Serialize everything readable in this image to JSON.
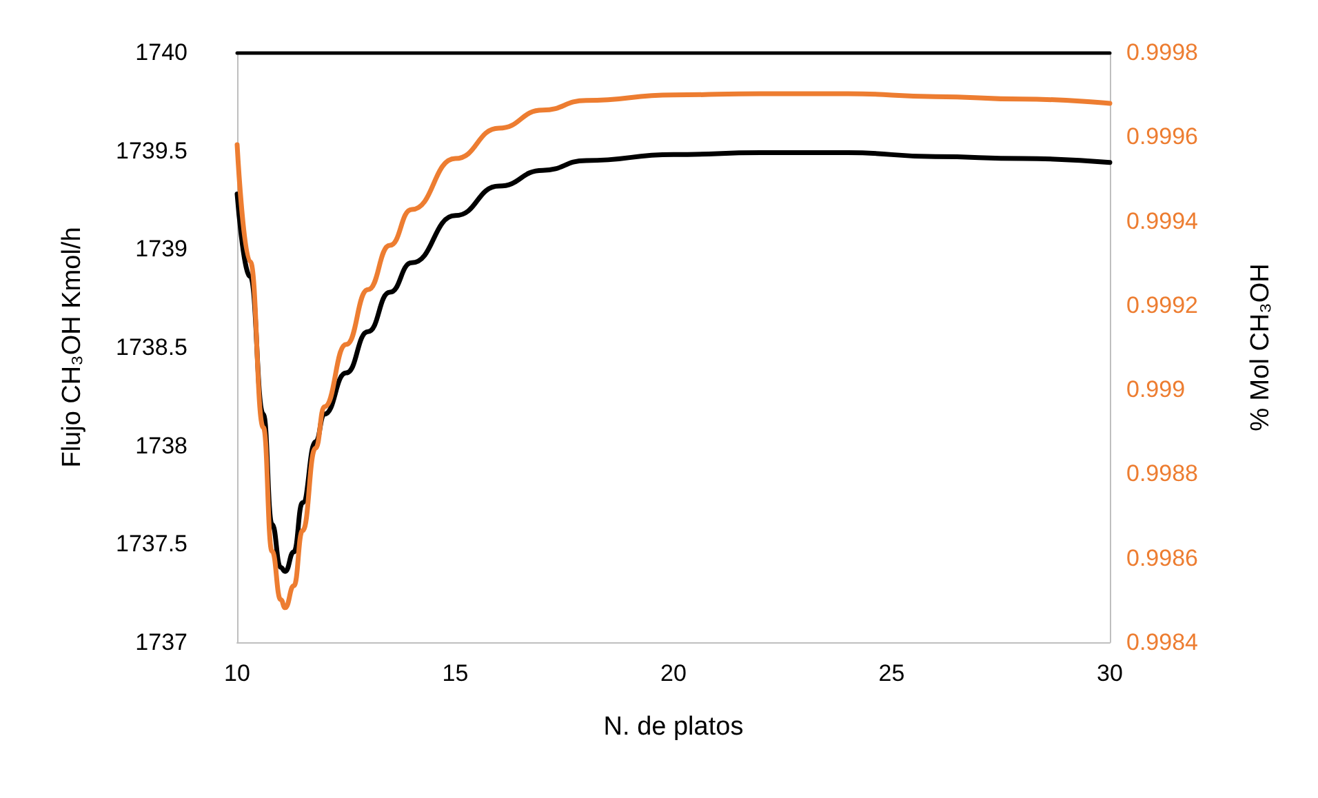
{
  "chart_data": {
    "type": "line",
    "xlabel": "N. de platos",
    "ylabel": "Flujo CH₃OH Kmol/h",
    "y2label": "% Mol CH₃OH",
    "xlim": [
      10,
      30
    ],
    "xticks": [
      10,
      15,
      20,
      25,
      30
    ],
    "ylim": [
      1737,
      1740
    ],
    "yticks": [
      1737,
      1737.5,
      1738,
      1738.5,
      1739,
      1739.5,
      1740
    ],
    "y2lim": [
      0.9984,
      0.9998
    ],
    "y2ticks": [
      0.9984,
      0.9986,
      0.9988,
      0.999,
      0.9992,
      0.9994,
      0.9996,
      0.9998
    ],
    "grid": false,
    "legend": false,
    "marker": "none",
    "line_style": "solid",
    "x": [
      10,
      10.3,
      10.6,
      10.8,
      11.0,
      11.1,
      11.3,
      11.5,
      11.8,
      12.0,
      12.5,
      13,
      13.5,
      14,
      15,
      16,
      17,
      18,
      20,
      22,
      24,
      26,
      28,
      30
    ],
    "series": [
      {
        "color": "#000000",
        "values": [
          1739.28,
          1738.86,
          1738.16,
          1737.6,
          1737.38,
          1737.36,
          1737.46,
          1737.71,
          1738.02,
          1738.16,
          1738.37,
          1738.58,
          1738.78,
          1738.93,
          1739.17,
          1739.32,
          1739.4,
          1739.45,
          1739.48,
          1739.49,
          1739.49,
          1739.47,
          1739.46,
          1739.44
        ]
      },
      {
        "color": "#ed7d31",
        "axis": "y2",
        "values": [
          0.999581,
          0.999303,
          0.99891,
          0.998616,
          0.998501,
          0.998482,
          0.998534,
          0.998665,
          0.998861,
          0.998959,
          0.999107,
          0.999237,
          0.999342,
          0.999427,
          0.999548,
          0.99962,
          0.999663,
          0.999686,
          0.999699,
          0.999702,
          0.999702,
          0.999695,
          0.999689,
          0.999679
        ]
      }
    ]
  }
}
